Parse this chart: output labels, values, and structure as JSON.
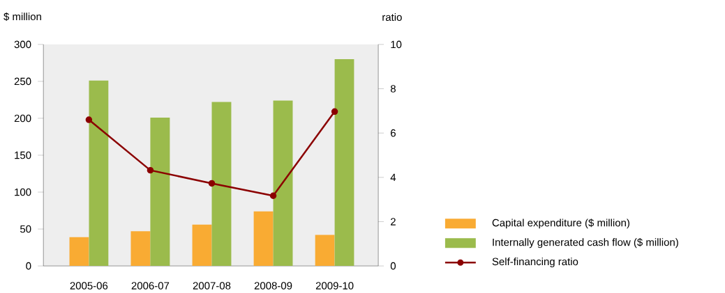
{
  "chart_data": {
    "type": "bar",
    "ylabel": "$ million",
    "y2label": "ratio",
    "categories": [
      "2005-06",
      "2006-07",
      "2007-08",
      "2008-09",
      "2009-10"
    ],
    "series": [
      {
        "name": "Capital expenditure ($ million)",
        "color": "#f9ab33",
        "values": [
          39,
          47,
          56,
          74,
          42
        ]
      },
      {
        "name": "Internally generated cash flow ($ million)",
        "color": "#9bbb4c",
        "values": [
          251,
          201,
          222,
          224,
          280
        ]
      },
      {
        "name": "Self-financing ratio",
        "type": "line",
        "axis": "y2",
        "marker": "circle",
        "color": "#8b0000",
        "values": [
          6.6,
          4.32,
          3.73,
          3.17,
          6.97
        ]
      }
    ],
    "ylim": [
      0,
      300
    ],
    "yticks": [
      0,
      50,
      100,
      150,
      200,
      250,
      300
    ],
    "y2lim": [
      0,
      10
    ],
    "y2ticks": [
      0,
      2,
      4,
      6,
      8,
      10
    ],
    "legend": "bottom right"
  }
}
